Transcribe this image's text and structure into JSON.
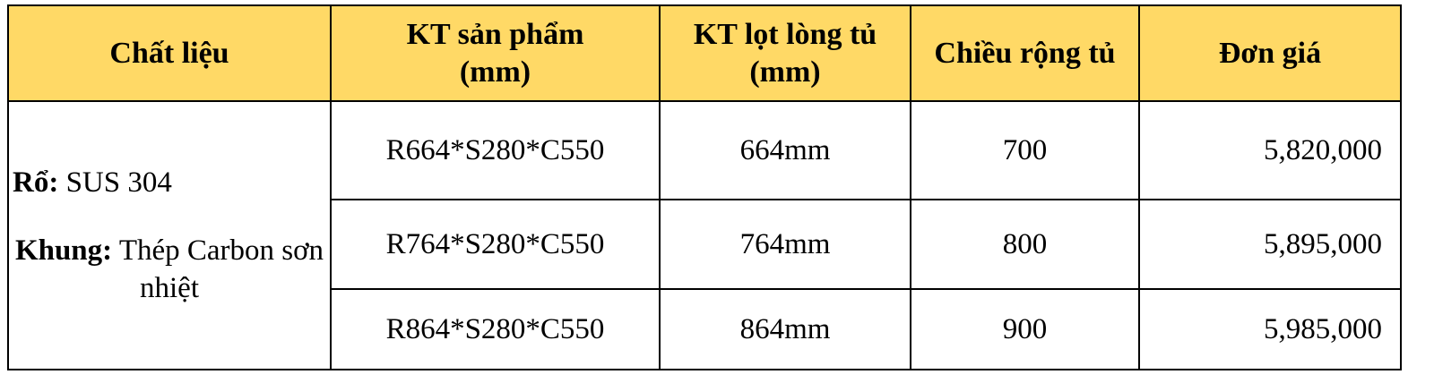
{
  "table": {
    "header": [
      "Chất liệu",
      "KT sản phẩm (mm)",
      "KT lọt lòng tủ (mm)",
      "Chiều rộng tủ",
      "Đơn giá"
    ],
    "material": {
      "label1": "Rổ:",
      "text1": "SUS 304",
      "label2": "Khung:",
      "text2": "Thép Carbon sơn nhiệt"
    },
    "rows": [
      [
        "R664*S280*C550",
        "664mm",
        "700",
        "5,820,000"
      ],
      [
        "R764*S280*C550",
        "764mm",
        "800",
        "5,895,000"
      ],
      [
        "R864*S280*C550",
        "864mm",
        "900",
        "5,985,000"
      ]
    ]
  }
}
